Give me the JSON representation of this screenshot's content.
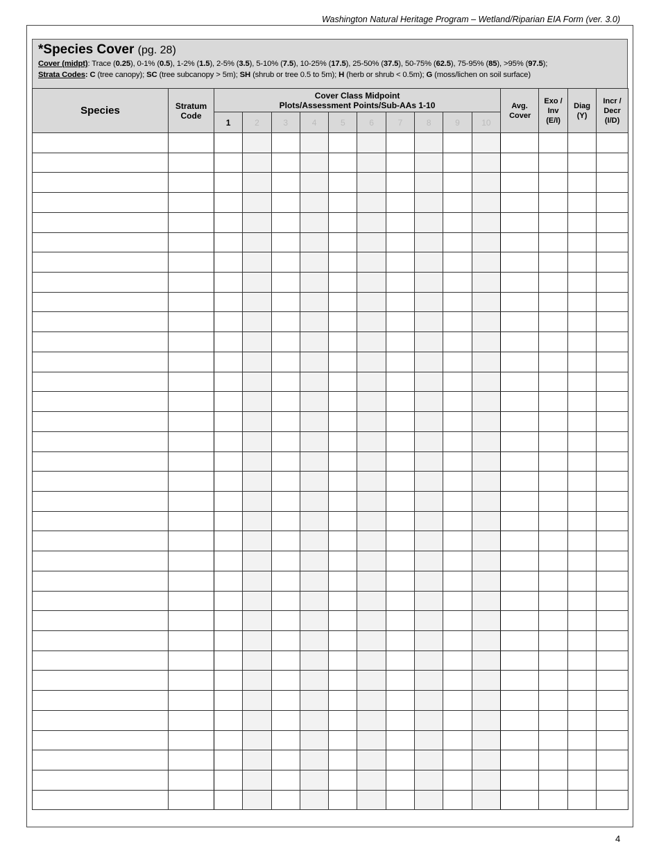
{
  "header": "Washington Natural Heritage Program – Wetland/Riparian EIA Form (ver. 3.0)",
  "title": "*Species Cover",
  "title_ref": "(pg. 28)",
  "cover": {
    "label": "Cover (midpt)",
    "classes": [
      [
        "Trace",
        "0.25"
      ],
      [
        "0-1%",
        "0.5"
      ],
      [
        "1-2%",
        "1.5"
      ],
      [
        "2-5%",
        "3.5"
      ],
      [
        "5-10%",
        "7.5"
      ],
      [
        "10-25%",
        "17.5"
      ],
      [
        "25-50%",
        "37.5"
      ],
      [
        "50-75%",
        "62.5"
      ],
      [
        "75-95%",
        "85"
      ],
      [
        ">95%",
        "97.5"
      ]
    ]
  },
  "strata": {
    "label": "Strata Codes:",
    "codes": [
      [
        "C",
        "(tree canopy)"
      ],
      [
        "SC",
        "(tree subcanopy > 5m)"
      ],
      [
        "SH",
        "(shrub or tree 0.5 to 5m)"
      ],
      [
        "H",
        "(herb or shrub < 0.5m)"
      ],
      [
        "G",
        "(moss/lichen on soil surface)"
      ]
    ]
  },
  "table": {
    "species": "Species",
    "stratum": "Stratum Code",
    "cover_line1": "Cover Class Midpoint",
    "cover_line2": "Plots/Assessment Points/Sub-AAs 1-10",
    "plots": [
      "1",
      "2",
      "3",
      "4",
      "5",
      "6",
      "7",
      "8",
      "9",
      "10"
    ],
    "avg": "Avg. Cover",
    "exo": "Exo / Inv (E/I)",
    "diag": "Diag (Y)",
    "incr": "Incr / Decr (I/D)"
  },
  "page_number": "4"
}
